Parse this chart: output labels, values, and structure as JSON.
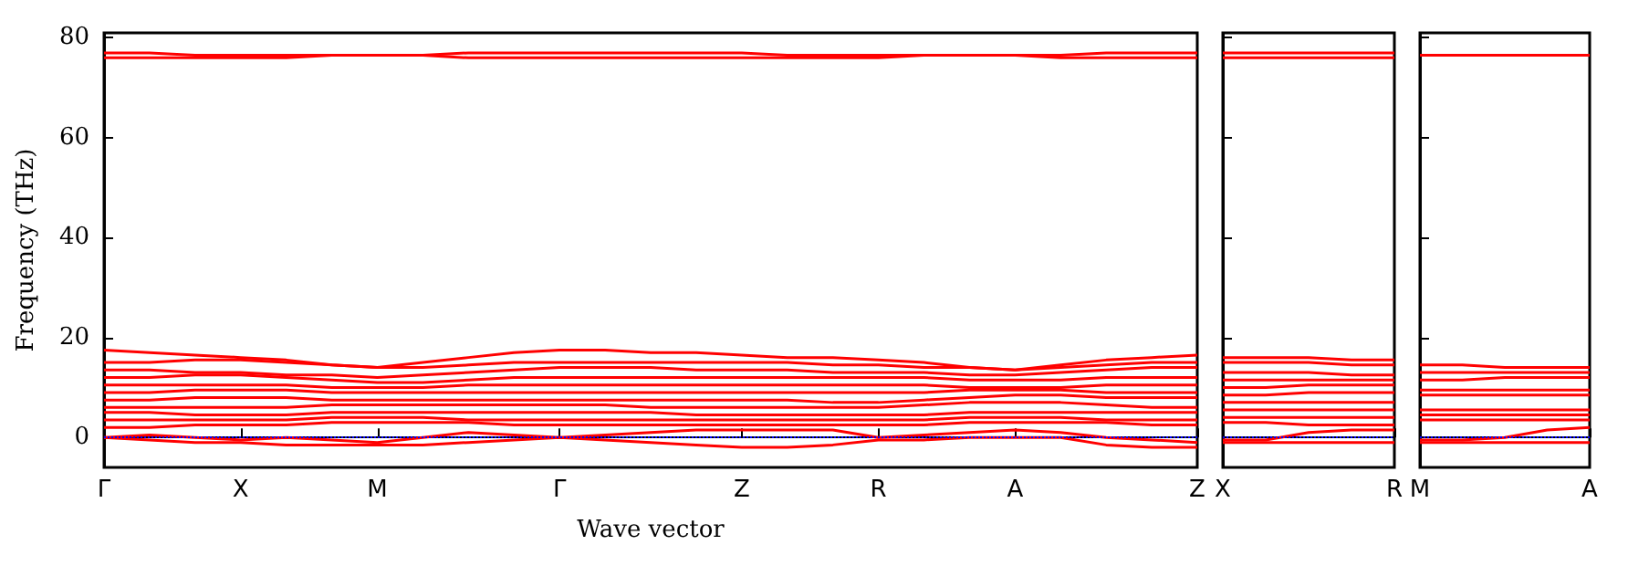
{
  "chart_data": [
    {
      "type": "line",
      "xlabel": "Wave vector",
      "ylabel": "Frequency (THz)",
      "ylim": [
        -6,
        81
      ],
      "yticks": [
        0,
        20,
        40,
        60,
        80
      ],
      "categories": [
        "Γ",
        null,
        null,
        "X",
        null,
        null,
        "M",
        null,
        null,
        null,
        "Γ",
        null,
        null,
        null,
        "Z",
        null,
        null,
        "R",
        null,
        null,
        "A",
        null,
        null,
        null,
        "Z"
      ],
      "ref_lines": [
        {
          "axis": "y",
          "value": 0,
          "color": "#0000ff",
          "line_style": "dotted"
        }
      ],
      "series": [
        {
          "color": "#ff0000",
          "values": [
            77,
            77,
            76.5,
            76.5,
            76.5,
            76.5,
            76.5,
            76.5,
            77,
            77,
            77,
            77,
            77,
            77,
            77,
            76.5,
            76.5,
            76.5,
            76.5,
            76.5,
            76.5,
            76.5,
            77,
            77,
            77
          ]
        },
        {
          "color": "#ff0000",
          "values": [
            76,
            76,
            76,
            76,
            76,
            76.5,
            76.5,
            76.5,
            76,
            76,
            76,
            76,
            76,
            76,
            76,
            76,
            76,
            76,
            76.5,
            76.5,
            76.5,
            76,
            76,
            76,
            76
          ]
        },
        {
          "color": "#ff0000",
          "values": [
            17.5,
            17,
            16.5,
            16,
            15.5,
            14.5,
            14,
            15,
            16,
            17,
            17.5,
            17.5,
            17,
            17,
            16.5,
            16,
            16,
            15.5,
            15,
            14,
            13.5,
            14.5,
            15.5,
            16,
            16.5
          ]
        },
        {
          "color": "#ff0000",
          "values": [
            15,
            15,
            15.5,
            15.5,
            15,
            14.5,
            14,
            14,
            14.5,
            15,
            15,
            15,
            15,
            15,
            15,
            15,
            14.5,
            14.5,
            14,
            14,
            13.5,
            14,
            14.5,
            15,
            15
          ]
        },
        {
          "color": "#ff0000",
          "values": [
            13.5,
            13.5,
            13,
            13,
            12.5,
            12.5,
            12,
            12.5,
            13,
            13.5,
            14,
            14,
            14,
            13.5,
            13.5,
            13.5,
            13,
            13,
            13,
            12.5,
            12.5,
            13,
            13.5,
            14,
            14
          ]
        },
        {
          "color": "#ff0000",
          "values": [
            12,
            12,
            12.5,
            12.5,
            12,
            11.5,
            11,
            11,
            11.5,
            12,
            12,
            12,
            12,
            12,
            12,
            12,
            12,
            12,
            12,
            11.5,
            11.5,
            11.5,
            12,
            12,
            12
          ]
        },
        {
          "color": "#ff0000",
          "values": [
            10.5,
            10.5,
            10.5,
            10.5,
            10.5,
            10,
            10,
            10,
            10.5,
            10.5,
            10.5,
            10.5,
            10.5,
            10.5,
            10.5,
            10.5,
            10.5,
            10.5,
            10.5,
            10,
            10,
            10,
            10.5,
            10.5,
            10.5
          ]
        },
        {
          "color": "#ff0000",
          "values": [
            9,
            9,
            9.5,
            9.5,
            9.5,
            9,
            9,
            9,
            9,
            9,
            9,
            9,
            9,
            9,
            9,
            9,
            9,
            9,
            9,
            9.5,
            9.5,
            9.5,
            9,
            9,
            9
          ]
        },
        {
          "color": "#ff0000",
          "values": [
            7.5,
            7.5,
            8,
            8,
            8,
            7.5,
            7.5,
            7.5,
            7.5,
            7.5,
            7.5,
            7.5,
            7.5,
            7.5,
            7.5,
            7.5,
            7,
            7,
            7.5,
            8,
            8.5,
            8.5,
            8,
            8,
            8
          ]
        },
        {
          "color": "#ff0000",
          "values": [
            6,
            6,
            6,
            6,
            6,
            6.5,
            6.5,
            6.5,
            6.5,
            6.5,
            6.5,
            6.5,
            6,
            6,
            6,
            6,
            6,
            6,
            6.5,
            7,
            7,
            7,
            6.5,
            6,
            6
          ]
        },
        {
          "color": "#ff0000",
          "values": [
            5,
            5,
            4.5,
            4.5,
            4.5,
            5,
            5,
            5,
            5,
            5,
            5,
            5,
            5,
            4.5,
            4.5,
            4.5,
            4.5,
            4.5,
            4.5,
            5,
            5,
            5,
            5,
            5,
            5
          ]
        },
        {
          "color": "#ff0000",
          "values": [
            3.5,
            3.5,
            3.5,
            3.5,
            3.5,
            4,
            4,
            4,
            3.5,
            3.5,
            3.5,
            3.5,
            3.5,
            3.5,
            3.5,
            3.5,
            3.5,
            3.5,
            3.5,
            4,
            4,
            4,
            3.5,
            3.5,
            3.5
          ]
        },
        {
          "color": "#ff0000",
          "values": [
            2,
            2,
            2.5,
            2.5,
            2.5,
            3,
            3,
            3,
            3,
            2.5,
            2.5,
            2.5,
            2.5,
            2.5,
            2.5,
            2.5,
            2.5,
            2.5,
            2.5,
            3,
            3,
            3,
            3,
            2.5,
            2.5
          ]
        },
        {
          "color": "#ff0000",
          "values": [
            0,
            0.5,
            0,
            -0.5,
            0,
            -0.5,
            -1,
            0,
            1,
            0.5,
            0,
            0.5,
            1,
            1.5,
            1.5,
            1.5,
            1.5,
            0,
            0.5,
            1,
            1.5,
            1,
            0,
            -0.5,
            -1
          ]
        },
        {
          "color": "#ff0000",
          "values": [
            0,
            -0.5,
            -1,
            -1,
            -1.5,
            -1.5,
            -1.5,
            -1.5,
            -1,
            -0.5,
            0,
            -0.5,
            -1,
            -1.5,
            -2,
            -2,
            -1.5,
            -0.5,
            -0.5,
            0,
            0,
            0,
            -1.5,
            -2,
            -2
          ]
        }
      ]
    },
    {
      "type": "line",
      "ylim": [
        -6,
        81
      ],
      "yticks": [
        0,
        20,
        40,
        60,
        80
      ],
      "tick_labels": "x",
      "categories": [
        "X",
        null,
        null,
        null,
        "R"
      ],
      "ref_lines": [
        {
          "axis": "y",
          "value": 0,
          "color": "#0000ff",
          "line_style": "dotted"
        }
      ],
      "series": [
        {
          "color": "#ff0000",
          "values": [
            77,
            77,
            77,
            77,
            77
          ]
        },
        {
          "color": "#ff0000",
          "values": [
            76,
            76,
            76,
            76,
            76
          ]
        },
        {
          "color": "#ff0000",
          "values": [
            16,
            16,
            16,
            15.5,
            15.5
          ]
        },
        {
          "color": "#ff0000",
          "values": [
            15,
            15,
            15,
            14.5,
            14.5
          ]
        },
        {
          "color": "#ff0000",
          "values": [
            13,
            13,
            13,
            12.5,
            12.5
          ]
        },
        {
          "color": "#ff0000",
          "values": [
            11.5,
            11.5,
            11.5,
            11.5,
            11.5
          ]
        },
        {
          "color": "#ff0000",
          "values": [
            10,
            10,
            10.5,
            10.5,
            10.5
          ]
        },
        {
          "color": "#ff0000",
          "values": [
            8.5,
            8.5,
            9,
            9,
            9
          ]
        },
        {
          "color": "#ff0000",
          "values": [
            7,
            7,
            7,
            7,
            7
          ]
        },
        {
          "color": "#ff0000",
          "values": [
            5.5,
            5.5,
            5.5,
            5.5,
            5.5
          ]
        },
        {
          "color": "#ff0000",
          "values": [
            4,
            4,
            4,
            4,
            4
          ]
        },
        {
          "color": "#ff0000",
          "values": [
            3,
            3,
            2.5,
            2.5,
            2.5
          ]
        },
        {
          "color": "#ff0000",
          "values": [
            -0.5,
            -0.5,
            1,
            1.5,
            1.5
          ]
        },
        {
          "color": "#ff0000",
          "values": [
            -1,
            -1,
            -1,
            -1,
            -1
          ]
        }
      ]
    },
    {
      "type": "line",
      "ylim": [
        -6,
        81
      ],
      "yticks": [
        0,
        20,
        40,
        60,
        80
      ],
      "tick_labels": "x",
      "categories": [
        "M",
        null,
        null,
        null,
        "A"
      ],
      "ref_lines": [
        {
          "axis": "y",
          "value": 0,
          "color": "#0000ff",
          "line_style": "dotted"
        }
      ],
      "series": [
        {
          "color": "#ff0000",
          "values": [
            76.5,
            76.5,
            76.5,
            76.5,
            76.5
          ]
        },
        {
          "color": "#ff0000",
          "values": [
            14.5,
            14.5,
            14,
            14,
            14
          ]
        },
        {
          "color": "#ff0000",
          "values": [
            13,
            13,
            13,
            13,
            13
          ]
        },
        {
          "color": "#ff0000",
          "values": [
            11.5,
            11.5,
            12,
            12,
            12
          ]
        },
        {
          "color": "#ff0000",
          "values": [
            9.5,
            9.5,
            9.5,
            9.5,
            9.5
          ]
        },
        {
          "color": "#ff0000",
          "values": [
            8.5,
            8.5,
            8.5,
            8.5,
            8.5
          ]
        },
        {
          "color": "#ff0000",
          "values": [
            5.5,
            5.5,
            5.5,
            5.5,
            5.5
          ]
        },
        {
          "color": "#ff0000",
          "values": [
            4.5,
            4.5,
            4.5,
            4.5,
            4.5
          ]
        },
        {
          "color": "#ff0000",
          "values": [
            3.5,
            3.5,
            3.5,
            3.5,
            3.5
          ]
        },
        {
          "color": "#ff0000",
          "values": [
            -0.5,
            -0.5,
            0,
            1.5,
            2
          ]
        },
        {
          "color": "#ff0000",
          "values": [
            -1,
            -1,
            -1,
            -1,
            -1
          ]
        }
      ]
    }
  ]
}
